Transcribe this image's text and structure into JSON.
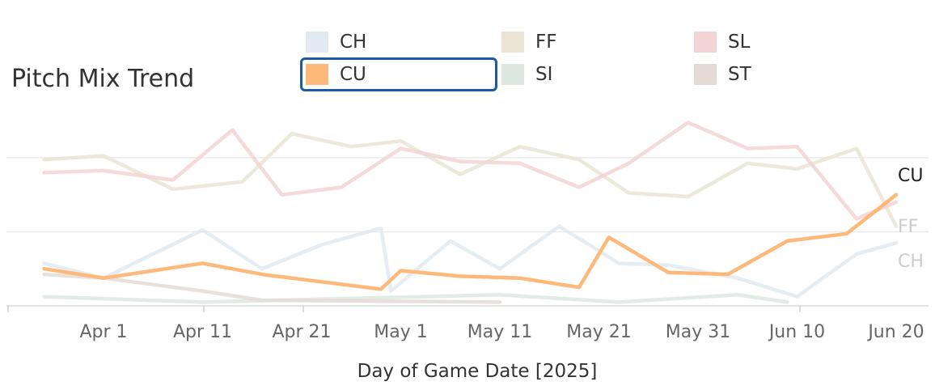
{
  "header": {
    "title": "Pitch Mix Trend"
  },
  "legend": [
    {
      "label": "CH",
      "color": "#e1eaf1",
      "selected": false
    },
    {
      "label": "CU",
      "color": "#fdb97a",
      "selected": true
    },
    {
      "label": "FF",
      "color": "#e9e4d3",
      "selected": false
    },
    {
      "label": "SI",
      "color": "#dde7e2",
      "selected": false
    },
    {
      "label": "SL",
      "color": "#f2d4d4",
      "selected": false
    },
    {
      "label": "ST",
      "color": "#e5dbd6",
      "selected": false
    }
  ],
  "chart_data": {
    "type": "line",
    "title": "Pitch Mix Trend",
    "xlabel": "Day of Game Date [2025]",
    "ylabel": "",
    "x_ticks": [
      "Apr 1",
      "Apr 11",
      "Apr 21",
      "May 1",
      "May 11",
      "May 21",
      "May 31",
      "Jun 10",
      "Jun 20"
    ],
    "ylim": [
      0,
      0.52
    ],
    "grid": "horizontal",
    "legend_position": "top",
    "series": [
      {
        "name": "CH",
        "color": "#e1eaf1",
        "highlight": false,
        "x": [
          "2025-03-26",
          "2025-04-01",
          "2025-04-11",
          "2025-04-17",
          "2025-04-23",
          "2025-04-29",
          "2025-04-30",
          "2025-05-06",
          "2025-05-11",
          "2025-05-17",
          "2025-05-23",
          "2025-05-28",
          "2025-06-04",
          "2025-06-10",
          "2025-06-16",
          "2025-06-20"
        ],
        "y": [
          0.115,
          0.075,
          0.205,
          0.1,
          0.165,
          0.21,
          0.04,
          0.175,
          0.1,
          0.215,
          0.115,
          0.11,
          0.075,
          0.025,
          0.14,
          0.17
        ]
      },
      {
        "name": "CU",
        "color": "#fdb97a",
        "highlight": true,
        "x": [
          "2025-03-26",
          "2025-04-01",
          "2025-04-11",
          "2025-04-17",
          "2025-04-23",
          "2025-04-29",
          "2025-05-01",
          "2025-05-07",
          "2025-05-13",
          "2025-05-19",
          "2025-05-22",
          "2025-05-28",
          "2025-06-03",
          "2025-06-09",
          "2025-06-15",
          "2025-06-20"
        ],
        "y": [
          0.1,
          0.075,
          0.115,
          0.085,
          0.065,
          0.045,
          0.095,
          0.08,
          0.075,
          0.05,
          0.185,
          0.09,
          0.085,
          0.175,
          0.195,
          0.3
        ]
      },
      {
        "name": "FF",
        "color": "#e9e4d3",
        "highlight": false,
        "x": [
          "2025-03-26",
          "2025-04-01",
          "2025-04-08",
          "2025-04-15",
          "2025-04-20",
          "2025-04-26",
          "2025-05-01",
          "2025-05-07",
          "2025-05-13",
          "2025-05-19",
          "2025-05-24",
          "2025-05-30",
          "2025-06-05",
          "2025-06-10",
          "2025-06-16",
          "2025-06-20"
        ],
        "y": [
          0.395,
          0.405,
          0.315,
          0.335,
          0.465,
          0.43,
          0.445,
          0.355,
          0.43,
          0.395,
          0.305,
          0.295,
          0.385,
          0.37,
          0.425,
          0.215
        ]
      },
      {
        "name": "SI",
        "color": "#dde7e2",
        "highlight": false,
        "x": [
          "2025-03-26",
          "2025-04-11",
          "2025-05-11",
          "2025-05-23",
          "2025-06-04",
          "2025-06-09"
        ],
        "y": [
          0.025,
          0.01,
          0.03,
          0.01,
          0.03,
          0.01
        ]
      },
      {
        "name": "SL",
        "color": "#f2d4d4",
        "highlight": false,
        "x": [
          "2025-03-26",
          "2025-04-01",
          "2025-04-08",
          "2025-04-14",
          "2025-04-19",
          "2025-04-25",
          "2025-05-01",
          "2025-05-07",
          "2025-05-13",
          "2025-05-19",
          "2025-05-24",
          "2025-05-30",
          "2025-06-05",
          "2025-06-10",
          "2025-06-16",
          "2025-06-20"
        ],
        "y": [
          0.36,
          0.365,
          0.34,
          0.475,
          0.3,
          0.32,
          0.425,
          0.39,
          0.385,
          0.32,
          0.385,
          0.495,
          0.425,
          0.43,
          0.235,
          0.28
        ]
      },
      {
        "name": "ST",
        "color": "#e5dbd6",
        "highlight": false,
        "x": [
          "2025-03-26",
          "2025-04-01",
          "2025-04-11",
          "2025-04-17",
          "2025-05-11"
        ],
        "y": [
          0.085,
          0.075,
          0.04,
          0.015,
          0.01
        ]
      }
    ],
    "end_labels": [
      {
        "series": "CU",
        "text": "CU",
        "color": "#222222"
      },
      {
        "series": "FF",
        "text": "FF",
        "color": "#cccccc"
      },
      {
        "series": "CH",
        "text": "CH",
        "color": "#cccccc"
      }
    ]
  }
}
